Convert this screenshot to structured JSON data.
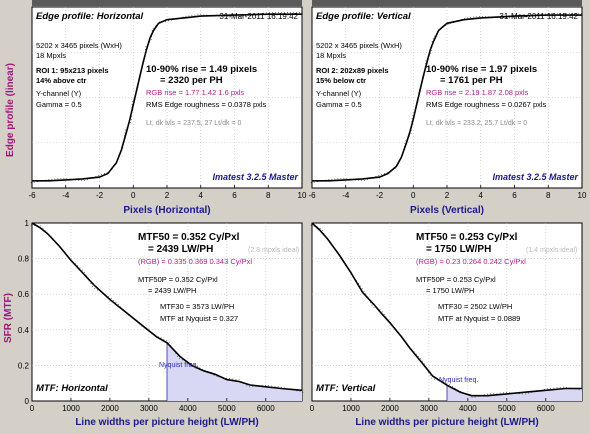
{
  "colors": {
    "background": "#d4d0c8",
    "plot_bg": "#ffffff",
    "curve": "#000000",
    "rgb_text": "#b0208a",
    "master_text": "#1a1a8a",
    "nyquist_fill": "#d8d8f4",
    "nyquist_line": "#2a2ab0",
    "ylabel_color": "#9a1a7a"
  },
  "shared": {
    "edge_ylabel": "Edge profile (linear)",
    "sfr_ylabel": "SFR (MTF)"
  },
  "chart_data": [
    {
      "type": "line",
      "id": "edge_h",
      "title": "Edge profile: Horizontal",
      "timestamp": "31-Mar-2011 16:19:42",
      "xlabel": "Pixels (Horizontal)",
      "xlim": [
        -6,
        10
      ],
      "ylim": [
        0,
        1
      ],
      "xticks": [
        -6,
        -4,
        -2,
        0,
        2,
        4,
        6,
        8,
        10
      ],
      "info_lines": [
        "5202 x 3465 pixels (WxH)",
        "18 Mpxls"
      ],
      "roi_line1": "ROI 1:  95x213 pixels",
      "roi_line2": "14% above ctr",
      "channel_lines": [
        "Y-channel  (Y)",
        "Gamma = 0.5"
      ],
      "rise_line1": "10-90% rise = 1.49 pixels",
      "rise_line2": "= 2320 per PH",
      "rgb_line": "RGB rise = 1.77  1.42  1.6 pxls",
      "rms_line": "RMS Edge roughness = 0.0378 pxls",
      "lt_line": "Lt, dk lvls = 237.5, 27   Lt/dk = 0",
      "master": "Imatest 3.2.5 Master",
      "x": [
        -6,
        -5,
        -4,
        -3,
        -2,
        -1.5,
        -1,
        -0.7,
        -0.4,
        -0.2,
        0,
        0.2,
        0.4,
        0.6,
        0.8,
        1,
        1.2,
        1.5,
        2,
        3,
        4,
        6,
        8,
        10
      ],
      "y": [
        0.04,
        0.04,
        0.045,
        0.05,
        0.06,
        0.08,
        0.14,
        0.21,
        0.31,
        0.38,
        0.46,
        0.54,
        0.62,
        0.7,
        0.77,
        0.83,
        0.87,
        0.91,
        0.93,
        0.94,
        0.95,
        0.955,
        0.96,
        0.96
      ]
    },
    {
      "type": "line",
      "id": "edge_v",
      "title": "Edge profile: Vertical",
      "timestamp": "31-Mar-2011 16:19:42",
      "xlabel": "Pixels (Vertical)",
      "xlim": [
        -6,
        10
      ],
      "ylim": [
        0,
        1
      ],
      "xticks": [
        -6,
        -4,
        -2,
        0,
        2,
        4,
        6,
        8,
        10
      ],
      "info_lines": [
        "5202 x 3465 pixels (WxH)",
        "18 Mpxls"
      ],
      "roi_line1": "ROI 2:  202x89 pixels",
      "roi_line2": "15% below ctr",
      "channel_lines": [
        "Y-channel  (Y)",
        "Gamma = 0.5"
      ],
      "rise_line1": "10-90% rise = 1.97 pixels",
      "rise_line2": "= 1761 per PH",
      "rgb_line": "RGB rise = 2.19  1.87  2.08 pxls",
      "rms_line": "RMS Edge roughness = 0.0267 pxls",
      "lt_line": "Lt, dk lvls = 233.2, 25.7   Lt/dk = 0",
      "master": "Imatest 3.2.5 Master",
      "x": [
        -6,
        -5,
        -4,
        -3,
        -2,
        -1.5,
        -1,
        -0.7,
        -0.4,
        -0.2,
        0,
        0.2,
        0.4,
        0.6,
        0.8,
        1,
        1.2,
        1.5,
        2,
        3,
        4,
        6,
        8,
        10
      ],
      "y": [
        0.04,
        0.04,
        0.045,
        0.05,
        0.06,
        0.08,
        0.12,
        0.17,
        0.25,
        0.31,
        0.38,
        0.46,
        0.54,
        0.62,
        0.69,
        0.76,
        0.81,
        0.87,
        0.91,
        0.93,
        0.94,
        0.95,
        0.955,
        0.955
      ]
    },
    {
      "type": "line",
      "id": "mtf_h",
      "title": "MTF: Horizontal",
      "xlabel": "Line widths per picture height (LW/PH)",
      "xlim": [
        0,
        6930
      ],
      "ylim": [
        0,
        1
      ],
      "xticks": [
        0,
        1000,
        2000,
        3000,
        4000,
        5000,
        6000
      ],
      "yticks": [
        0,
        0.2,
        0.4,
        0.6,
        0.8,
        1
      ],
      "mtf50_line1": "MTF50 = 0.352 Cy/Pxl",
      "mtf50_line2": "= 2439 LW/PH",
      "ideal_note": "(2.8 mpxls ideal)",
      "rgb_line": "(RGB) = 0.335  0.369  0.343 Cy/Pxl",
      "mtf50p_line1": "MTF50P = 0.352 Cy/Pxl",
      "mtf50p_line2": "= 2439 LW/PH",
      "mtf30_line": "MTF30 = 3573 LW/PH",
      "nyq_line": "MTF at Nyquist = 0.327",
      "nyquist_label": "Nyquist freq.",
      "nyquist_x": 3465,
      "x": [
        0,
        200,
        400,
        700,
        1000,
        1300,
        1600,
        2000,
        2400,
        2800,
        3200,
        3465,
        3800,
        4100,
        4400,
        4700,
        5000,
        5300,
        5600,
        6000,
        6400,
        6930
      ],
      "y": [
        1,
        0.975,
        0.94,
        0.87,
        0.79,
        0.72,
        0.65,
        0.57,
        0.5,
        0.43,
        0.36,
        0.327,
        0.25,
        0.2,
        0.17,
        0.15,
        0.12,
        0.11,
        0.09,
        0.08,
        0.07,
        0.06
      ]
    },
    {
      "type": "line",
      "id": "mtf_v",
      "title": "MTF: Vertical",
      "xlabel": "Line widths per picture height (LW/PH)",
      "xlim": [
        0,
        6930
      ],
      "ylim": [
        0,
        1
      ],
      "xticks": [
        0,
        1000,
        2000,
        3000,
        4000,
        5000,
        6000
      ],
      "yticks": [
        0,
        0.2,
        0.4,
        0.6,
        0.8,
        1
      ],
      "mtf50_line1": "MTF50 = 0.253 Cy/Pxl",
      "mtf50_line2": "= 1750 LW/PH",
      "ideal_note": "(1.4 mpxls ideal)",
      "rgb_line": "(RGB) = 0.23  0.264  0.242 Cy/Pxl",
      "mtf50p_line1": "MTF50P = 0.253 Cy/Pxl",
      "mtf50p_line2": "= 1750 LW/PH",
      "mtf30_line": "MTF30 = 2502 LW/PH",
      "nyq_line": "MTF at Nyquist = 0.0889",
      "nyquist_label": "Nyquist freq.",
      "nyquist_x": 3465,
      "x": [
        0,
        200,
        400,
        700,
        1000,
        1300,
        1600,
        1750,
        2000,
        2300,
        2502,
        2800,
        3100,
        3465,
        3800,
        4100,
        4500,
        5000,
        5500,
        6000,
        6500,
        6930
      ],
      "y": [
        1,
        0.96,
        0.91,
        0.82,
        0.72,
        0.61,
        0.54,
        0.5,
        0.44,
        0.36,
        0.3,
        0.22,
        0.14,
        0.089,
        0.05,
        0.03,
        0.03,
        0.04,
        0.05,
        0.06,
        0.07,
        0.07
      ]
    }
  ]
}
